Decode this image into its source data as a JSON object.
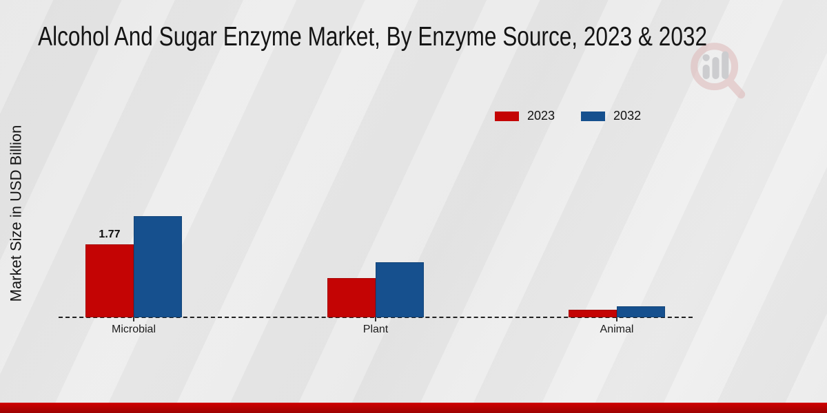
{
  "title": "Alcohol And Sugar Enzyme Market, By Enzyme Source, 2023 & 2032",
  "ylabel": "Market Size in USD Billion",
  "legend": {
    "items": [
      {
        "label": "2023",
        "color": "#c40404"
      },
      {
        "label": "2032",
        "color": "#16508e"
      }
    ]
  },
  "colors": {
    "series_2023": "#c40404",
    "series_2032": "#16508e",
    "footer_band": "#c00000",
    "background": "#e9e9e9",
    "baseline": "#1f1f1f"
  },
  "chart_data": {
    "type": "bar",
    "categories": [
      "Microbial",
      "Plant",
      "Animal"
    ],
    "series": [
      {
        "name": "2023",
        "color": "#c40404",
        "values": [
          1.77,
          0.95,
          0.18
        ],
        "labels": [
          "1.77",
          "",
          ""
        ]
      },
      {
        "name": "2032",
        "color": "#16508e",
        "values": [
          2.45,
          1.33,
          0.27
        ],
        "labels": [
          "",
          "",
          ""
        ]
      }
    ],
    "title": "Alcohol And Sugar Enzyme Market, By Enzyme Source, 2023 & 2032",
    "xlabel": "",
    "ylabel": "Market Size in USD Billion",
    "ylim": [
      0,
      2.8
    ],
    "grid": false,
    "legend_position": "top-right",
    "baseline_style": "dashed",
    "y_axis_ticks_visible": false
  },
  "watermark": {
    "name": "magnifier-bar-chart-logo"
  }
}
